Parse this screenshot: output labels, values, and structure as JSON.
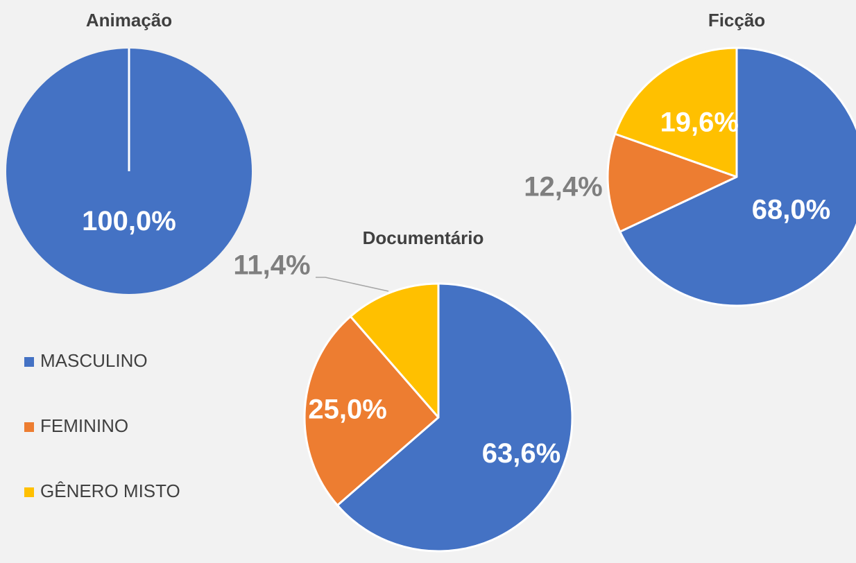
{
  "chart_data": [
    {
      "type": "pie",
      "title": "Animação",
      "categories": [
        "MASCULINO"
      ],
      "values": [
        100
      ],
      "value_labels": [
        "100,0%"
      ],
      "colors": [
        "#4472c4"
      ]
    },
    {
      "type": "pie",
      "title": "Documentário",
      "categories": [
        "MASCULINO",
        "FEMININO",
        "GÊNERO MISTO"
      ],
      "values": [
        63.6,
        25.0,
        11.4
      ],
      "value_labels": [
        "63,6%",
        "25,0%",
        "11,4%"
      ],
      "colors": [
        "#4472c4",
        "#ed7d31",
        "#ffc000"
      ]
    },
    {
      "type": "pie",
      "title": "Ficção",
      "categories": [
        "MASCULINO",
        "FEMININO",
        "GÊNERO MISTO"
      ],
      "values": [
        68.0,
        12.4,
        19.6
      ],
      "value_labels": [
        "68,0%",
        "12,4%",
        "19,6%"
      ],
      "colors": [
        "#4472c4",
        "#ed7d31",
        "#ffc000"
      ]
    }
  ]
}
